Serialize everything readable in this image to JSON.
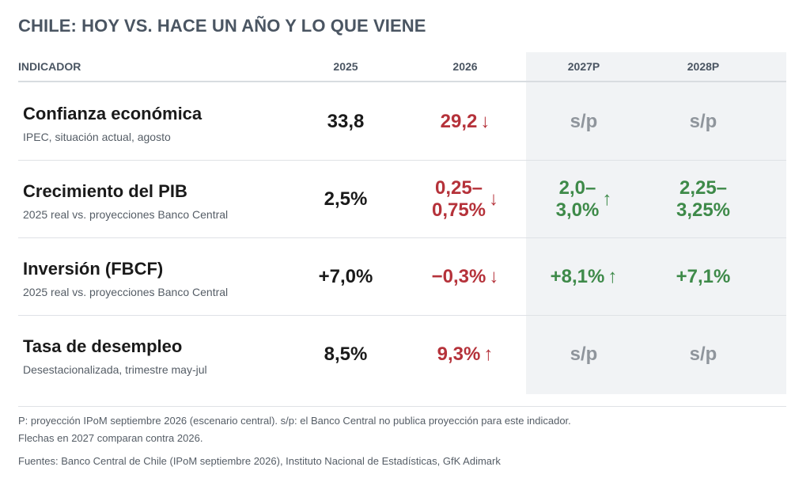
{
  "title": "CHILE: HOY VS. HACE UN AÑO Y LO QUE VIENE",
  "header": {
    "indicator": "INDICADOR",
    "c2025": "2025",
    "c2026": "2026",
    "c2027": "2027P",
    "c2028": "2028P"
  },
  "colors": {
    "red": "#b5323a",
    "green": "#3e8a49",
    "gray": "#8f959c",
    "projection_bg": "#f1f3f5"
  },
  "rows": [
    {
      "name": "Confianza económica",
      "sub": "IPEC, situación actual, agosto",
      "v2025": "33,8",
      "v2026": "29,2",
      "a2026": "down-arrow",
      "v2027": "s/p",
      "v2028": "s/p"
    },
    {
      "name": "Crecimiento del PIB",
      "sub": "2025 real vs. proyecciones Banco Central",
      "v2025": "2,5%",
      "v2026_l1": "0,25–",
      "v2026_l2": "0,75%",
      "a2026": "down-arrow",
      "v2027_l1": "2,0–",
      "v2027_l2": "3,0%",
      "a2027": "up-arrow",
      "v2028_l1": "2,25–",
      "v2028_l2": "3,25%"
    },
    {
      "name": "Inversión (FBCF)",
      "sub": "2025 real vs. proyecciones Banco Central",
      "v2025": "+7,0%",
      "v2026": "−0,3%",
      "a2026": "down-arrow",
      "v2027": "+8,1%",
      "a2027": "up-arrow",
      "v2028": "+7,1%"
    },
    {
      "name": "Tasa de desempleo",
      "sub": "Desestacionalizada, trimestre may-jul",
      "v2025": "8,5%",
      "v2026": "9,3%",
      "a2026": "up-arrow",
      "v2027": "s/p",
      "v2028": "s/p"
    }
  ],
  "notes": {
    "line1": "P: proyección IPoM septiembre 2026 (escenario central). s/p: el Banco Central no publica proyección para este indicador.",
    "line2": "Flechas en 2027 comparan contra 2026.",
    "sources": "Fuentes: Banco Central de Chile (IPoM septiembre 2026), Instituto Nacional de Estadísticas, GfK Adimark"
  }
}
